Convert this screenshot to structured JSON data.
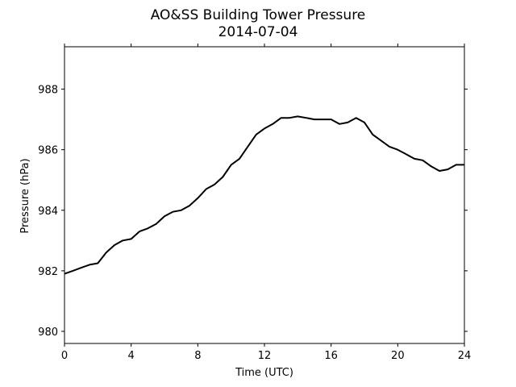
{
  "chart_data": {
    "type": "line",
    "title": "AO&SS Building Tower Pressure",
    "subtitle": "2014-07-04",
    "xlabel": "Time (UTC)",
    "ylabel": "Pressure (hPa)",
    "xlim": [
      0,
      24
    ],
    "ylim": [
      979.6,
      989.4
    ],
    "xticks": [
      0,
      4,
      8,
      12,
      16,
      20,
      24
    ],
    "yticks": [
      980,
      982,
      984,
      986,
      988
    ],
    "grid": false,
    "legend": "none",
    "series": [
      {
        "color": "#000000",
        "x": [
          0,
          0.5,
          1,
          1.5,
          2,
          2.5,
          3,
          3.5,
          4,
          4.5,
          5,
          5.5,
          6,
          6.5,
          7,
          7.5,
          8,
          8.5,
          9,
          9.5,
          10,
          10.5,
          11,
          11.5,
          12,
          12.5,
          13,
          13.5,
          14,
          14.5,
          15,
          15.5,
          16,
          16.5,
          17,
          17.5,
          18,
          18.5,
          19,
          19.5,
          20,
          20.5,
          21,
          21.5,
          22,
          22.5,
          23,
          23.5,
          24
        ],
        "y": [
          981.9,
          982.0,
          982.1,
          982.2,
          982.25,
          982.6,
          982.85,
          983.0,
          983.05,
          983.3,
          983.4,
          983.55,
          983.8,
          983.95,
          984.0,
          984.15,
          984.4,
          984.7,
          984.85,
          985.1,
          985.5,
          985.7,
          986.1,
          986.5,
          986.7,
          986.85,
          987.05,
          987.05,
          987.1,
          987.05,
          987.0,
          987.0,
          987.0,
          986.85,
          986.9,
          987.05,
          986.9,
          986.5,
          986.3,
          986.1,
          986.0,
          985.85,
          985.7,
          985.65,
          985.45,
          985.3,
          985.35,
          985.5,
          985.5
        ]
      }
    ]
  }
}
